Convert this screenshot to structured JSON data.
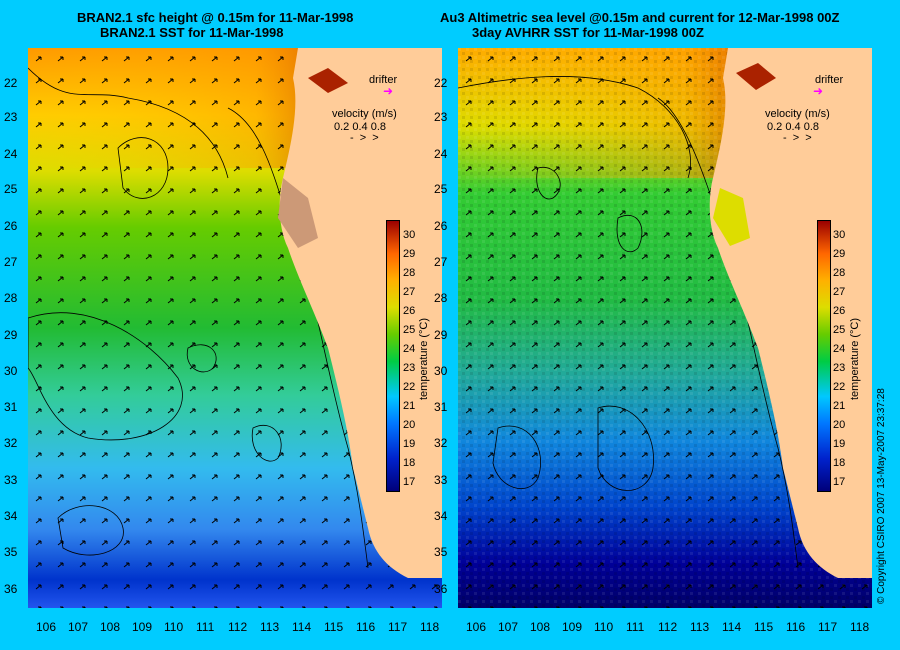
{
  "left_panel": {
    "title_line1": "BRAN2.1 sfc height @ 0.15m for 11-Mar-1998",
    "title_line2": "BRAN2.1 SST for 11-Mar-1998"
  },
  "right_panel": {
    "title_line1": "Au3 Altimetric sea level  @0.15m and current for 12-Mar-1998 00Z",
    "title_line2": "3day AVHRR SST for 11-Mar-1998 00Z"
  },
  "axes": {
    "lat_labels": [
      "22",
      "23",
      "24",
      "25",
      "26",
      "27",
      "28",
      "29",
      "30",
      "31",
      "32",
      "33",
      "34",
      "35",
      "36"
    ],
    "lon_labels": [
      "106",
      "107",
      "108",
      "109",
      "110",
      "111",
      "112",
      "113",
      "114",
      "115",
      "116",
      "117",
      "118"
    ]
  },
  "legend": {
    "drifter_label": "drifter",
    "velocity_title": "velocity (m/s)",
    "velocity_values": "0.2 0.4 0.8"
  },
  "colorbar": {
    "ticks": [
      "30",
      "29",
      "28",
      "27",
      "26",
      "25",
      "24",
      "23",
      "22",
      "21",
      "20",
      "19",
      "18",
      "17"
    ],
    "label": "temperature (°C)"
  },
  "copyright": "© Copyright CSIRO 2007   13-May-2007 23:37:28",
  "colors": {
    "background": "#00ccff",
    "land": "#ffcc99",
    "drifter": "#ff00ff"
  }
}
